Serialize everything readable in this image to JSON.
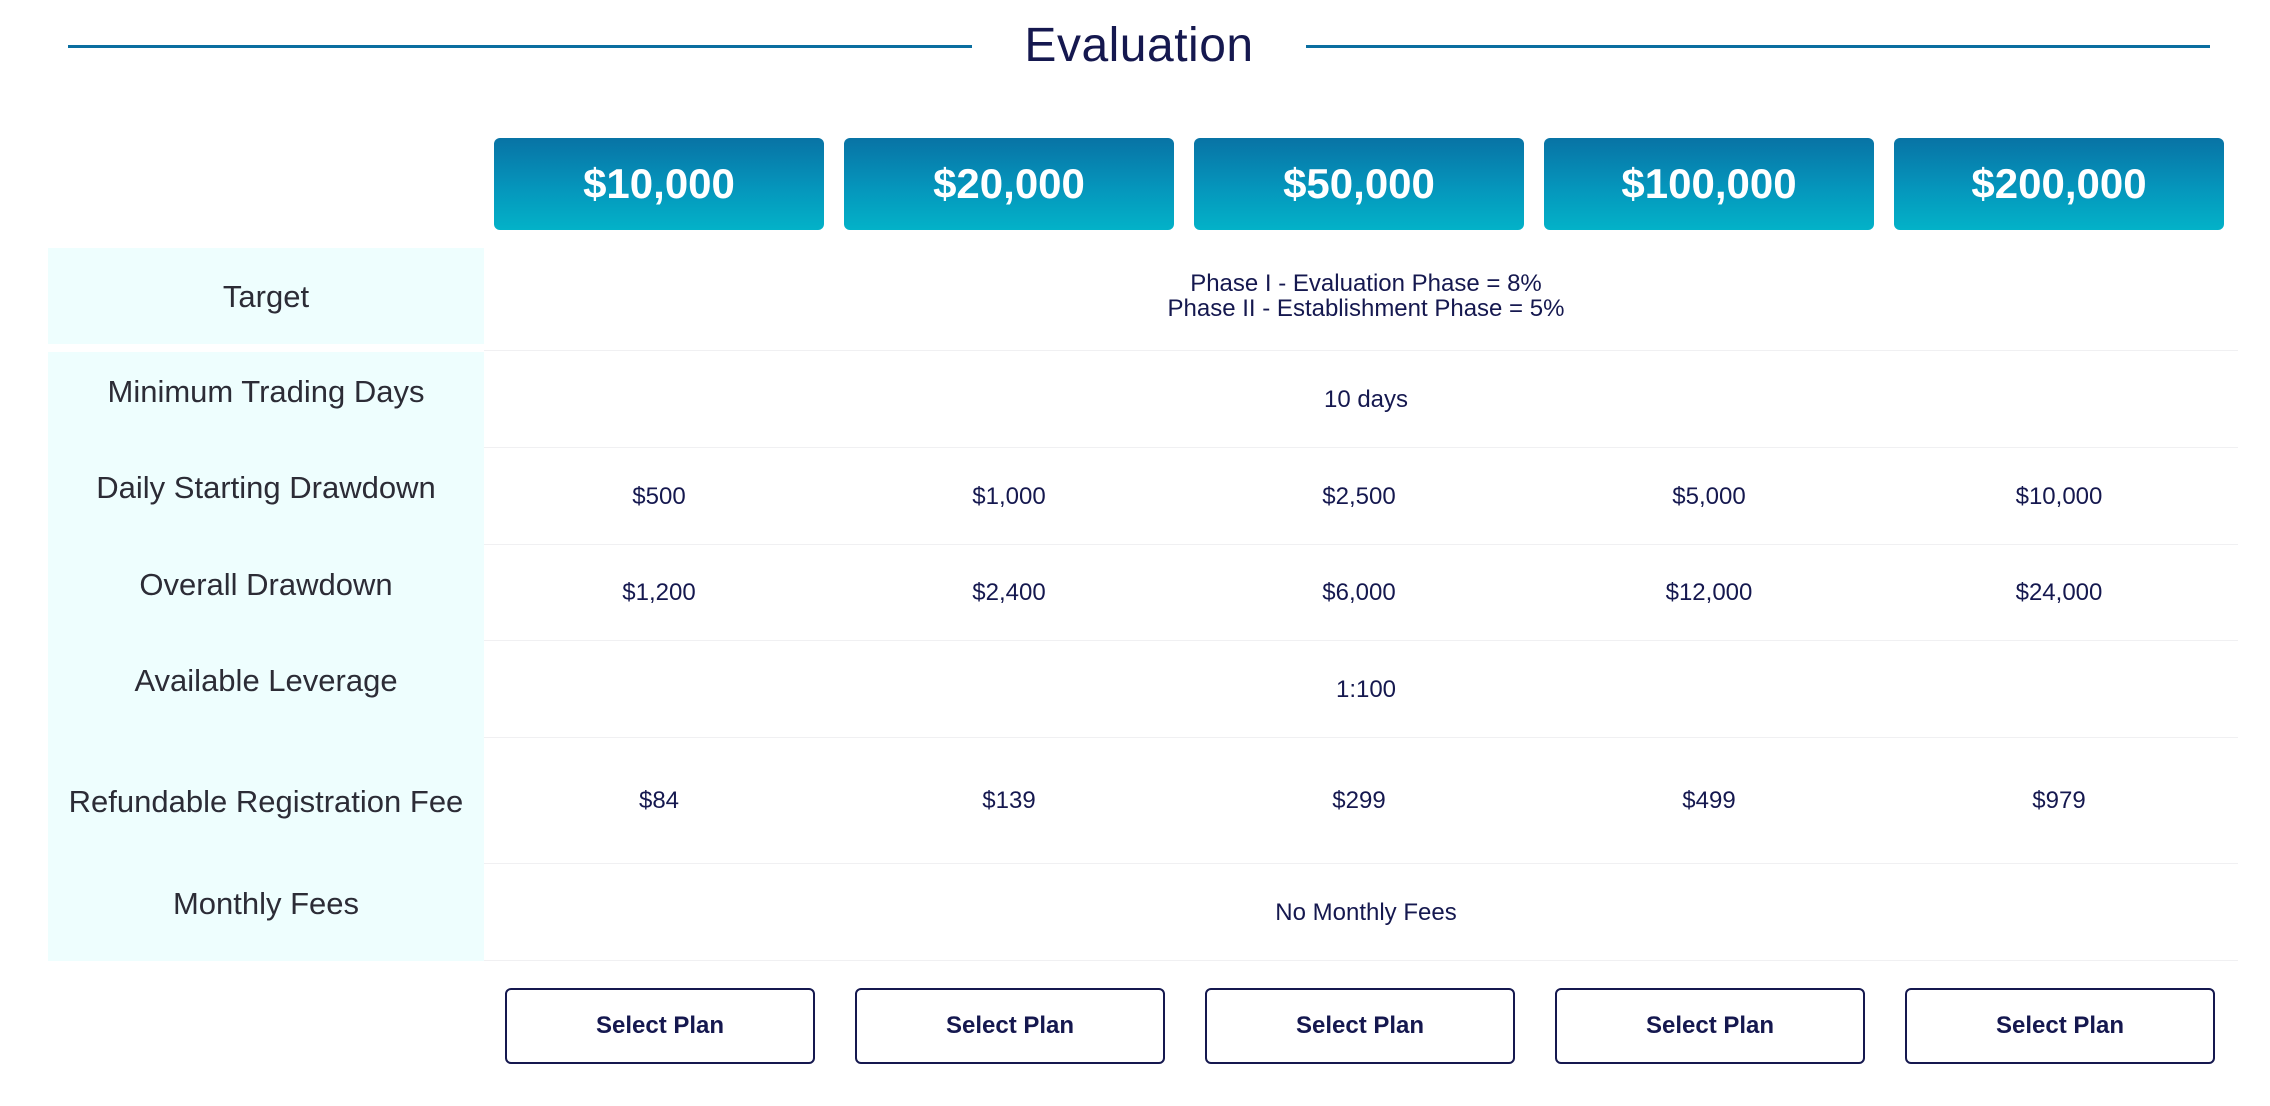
{
  "title": "Evaluation",
  "plans": [
    "$10,000",
    "$20,000",
    "$50,000",
    "$100,000",
    "$200,000"
  ],
  "rows": {
    "target": {
      "label": "Target",
      "line1": "Phase I - Evaluation Phase = 8%",
      "line2": "Phase II - Establishment Phase = 5%"
    },
    "min_days": {
      "label": "Minimum Trading Days",
      "value": "10 days"
    },
    "daily_drawdown": {
      "label": "Daily Starting Drawdown",
      "values": [
        "$500",
        "$1,000",
        "$2,500",
        "$5,000",
        "$10,000"
      ]
    },
    "overall_drawdown": {
      "label": "Overall Drawdown",
      "values": [
        "$1,200",
        "$2,400",
        "$6,000",
        "$12,000",
        "$24,000"
      ]
    },
    "leverage": {
      "label": "Available Leverage",
      "value": "1:100"
    },
    "registration_fee": {
      "label": "Refundable Registration Fee",
      "values": [
        "$84",
        "$139",
        "$299",
        "$499",
        "$979"
      ]
    },
    "monthly_fees": {
      "label": "Monthly Fees",
      "value": "No Monthly Fees"
    }
  },
  "button_label": "Select Plan",
  "colors": {
    "accent_line": "#0a6ea0",
    "tab_gradient_top": "#0873a5",
    "tab_gradient_bottom": "#03b2c8",
    "label_bg": "#eefefe",
    "text_dark": "#15184f"
  }
}
